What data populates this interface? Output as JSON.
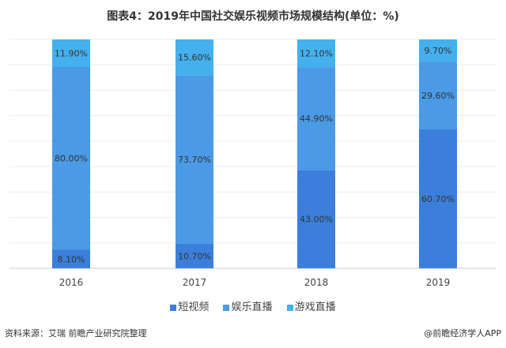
{
  "chart_data": {
    "type": "bar",
    "stacked": true,
    "title": "图表4：2019年中国社交娱乐视频市场规模结构(单位：%)",
    "categories": [
      "2016",
      "2017",
      "2018",
      "2019"
    ],
    "series": [
      {
        "name": "短视频",
        "color": "#3b7fdb",
        "values": [
          8.1,
          10.7,
          43.0,
          60.7
        ],
        "labels": [
          "8.10%",
          "10.70%",
          "43.00%",
          "60.70%"
        ]
      },
      {
        "name": "娱乐直播",
        "color": "#4a9ae6",
        "values": [
          80.0,
          73.7,
          44.9,
          29.6
        ],
        "labels": [
          "80.00%",
          "73.70%",
          "44.90%",
          "29.60%"
        ]
      },
      {
        "name": "游戏直播",
        "color": "#45b0ee",
        "values": [
          11.9,
          15.6,
          12.1,
          9.7
        ],
        "labels": [
          "11.90%",
          "15.60%",
          "12.10%",
          "9.70%"
        ]
      }
    ],
    "ylim": [
      0,
      100
    ],
    "legend": "bottom"
  },
  "footer": {
    "source": "资料来源：艾瑞 前瞻产业研究院整理",
    "credit": "@前瞻经济学人APP"
  }
}
